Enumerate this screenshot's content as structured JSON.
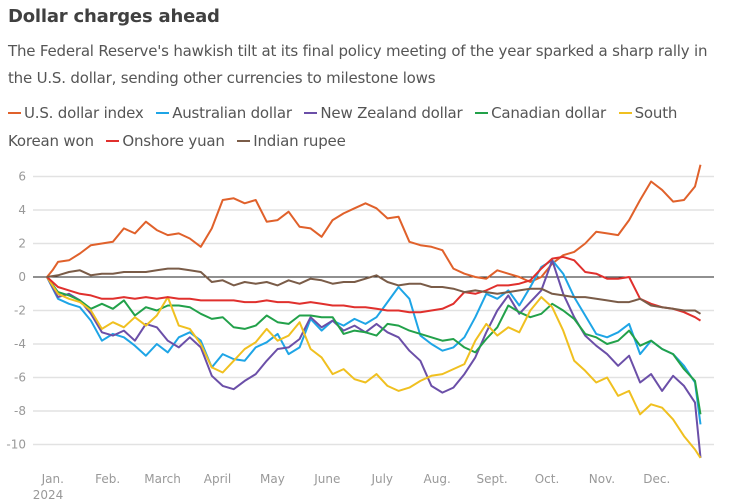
{
  "header": {
    "title": "Dollar charges ahead",
    "subtitle": "The Federal Reserve's hawkish tilt at its final policy meeting of the year sparked a sharp rally in the U.S. dollar, sending other currencies to milestone lows"
  },
  "chart_data": {
    "type": "line",
    "title": "Dollar charges ahead",
    "subtitle": "The Federal Reserve's hawkish tilt at its final policy meeting of the year sparked a sharp rally in the U.S. dollar, sending other currencies to milestone lows",
    "xlabel": "",
    "ylabel": "",
    "ylim": [
      -11,
      6.5
    ],
    "xlim": [
      0,
      12
    ],
    "x_unit": "months since Jan. 1, 2024",
    "yticks": [
      6,
      4,
      2,
      0,
      -2,
      -4,
      -6,
      -8,
      -10
    ],
    "ytick_labels": [
      "6",
      "4",
      "2",
      "0",
      "-2",
      "-4",
      "-6",
      "-8",
      "-10"
    ],
    "xtick_labels": [
      "Jan.",
      "Feb.",
      "March",
      "April",
      "May",
      "June",
      "July",
      "Aug.",
      "Sept.",
      "Oct.",
      "Nov.",
      "Dec."
    ],
    "xtick_sublabel": "2024",
    "grid": true,
    "zero_line": true,
    "legend_position": "top",
    "series": [
      {
        "name": "U.S. dollar index",
        "color": "#e0612b",
        "x": [
          0,
          0.1,
          0.2,
          0.4,
          0.6,
          0.8,
          1.0,
          1.2,
          1.4,
          1.6,
          1.8,
          2.0,
          2.2,
          2.4,
          2.6,
          2.8,
          3.0,
          3.2,
          3.4,
          3.6,
          3.8,
          4.0,
          4.2,
          4.4,
          4.6,
          4.8,
          5.0,
          5.2,
          5.4,
          5.6,
          5.8,
          6.0,
          6.2,
          6.4,
          6.6,
          6.8,
          7.0,
          7.2,
          7.4,
          7.6,
          7.8,
          8.0,
          8.2,
          8.4,
          8.6,
          8.8,
          9.0,
          9.2,
          9.4,
          9.6,
          9.8,
          10.0,
          10.2,
          10.4,
          10.6,
          10.8,
          11.0,
          11.2,
          11.4,
          11.6,
          11.8,
          11.9
        ],
        "y": [
          0,
          0.4,
          0.9,
          1.0,
          1.4,
          1.9,
          2.0,
          2.1,
          2.9,
          2.6,
          3.3,
          2.8,
          2.5,
          2.6,
          2.3,
          1.8,
          2.9,
          4.6,
          4.7,
          4.4,
          4.6,
          3.3,
          3.4,
          3.9,
          3.0,
          2.9,
          2.4,
          3.4,
          3.8,
          4.1,
          4.4,
          4.1,
          3.5,
          3.6,
          2.1,
          1.9,
          1.8,
          1.6,
          0.5,
          0.2,
          0.0,
          -0.1,
          0.4,
          0.2,
          0.0,
          -0.3,
          0.0,
          0.8,
          1.3,
          1.5,
          2.0,
          2.7,
          2.6,
          2.5,
          3.4,
          4.6,
          5.7,
          5.2,
          4.5,
          4.6,
          5.4,
          6.7
        ]
      },
      {
        "name": "Australian dollar",
        "color": "#1ea5e6",
        "x": [
          0,
          0.2,
          0.4,
          0.6,
          0.8,
          1.0,
          1.2,
          1.4,
          1.6,
          1.8,
          2.0,
          2.2,
          2.4,
          2.6,
          2.8,
          3.0,
          3.2,
          3.4,
          3.6,
          3.8,
          4.0,
          4.2,
          4.4,
          4.6,
          4.8,
          5.0,
          5.2,
          5.4,
          5.6,
          5.8,
          6.0,
          6.2,
          6.4,
          6.6,
          6.8,
          7.0,
          7.2,
          7.4,
          7.6,
          7.8,
          8.0,
          8.2,
          8.4,
          8.6,
          8.8,
          9.0,
          9.2,
          9.4,
          9.6,
          9.8,
          10.0,
          10.2,
          10.4,
          10.6,
          10.8,
          11.0,
          11.2,
          11.4,
          11.6,
          11.8,
          11.9
        ],
        "y": [
          0,
          -1.3,
          -1.6,
          -1.8,
          -2.6,
          -3.8,
          -3.4,
          -3.6,
          -4.1,
          -4.7,
          -4.0,
          -4.5,
          -3.6,
          -3.3,
          -3.8,
          -5.4,
          -4.6,
          -4.9,
          -5.0,
          -4.2,
          -3.9,
          -3.4,
          -4.6,
          -4.2,
          -2.5,
          -3.2,
          -2.6,
          -2.9,
          -2.5,
          -2.8,
          -2.4,
          -1.5,
          -0.6,
          -1.3,
          -3.5,
          -4.0,
          -4.4,
          -4.2,
          -3.6,
          -2.4,
          -1.0,
          -1.3,
          -0.8,
          -1.7,
          -0.6,
          0.6,
          1.0,
          0.2,
          -1.2,
          -2.3,
          -3.4,
          -3.6,
          -3.3,
          -2.8,
          -4.6,
          -3.8,
          -4.3,
          -4.6,
          -5.3,
          -6.3,
          -8.8
        ]
      },
      {
        "name": "New Zealand dollar",
        "color": "#6b4fa8",
        "x": [
          0,
          0.2,
          0.4,
          0.6,
          0.8,
          1.0,
          1.2,
          1.4,
          1.6,
          1.8,
          2.0,
          2.2,
          2.4,
          2.6,
          2.8,
          3.0,
          3.2,
          3.4,
          3.6,
          3.8,
          4.0,
          4.2,
          4.4,
          4.6,
          4.8,
          5.0,
          5.2,
          5.4,
          5.6,
          5.8,
          6.0,
          6.2,
          6.4,
          6.6,
          6.8,
          7.0,
          7.2,
          7.4,
          7.6,
          7.8,
          8.0,
          8.2,
          8.4,
          8.6,
          8.8,
          9.0,
          9.2,
          9.4,
          9.6,
          9.8,
          10.0,
          10.2,
          10.4,
          10.6,
          10.8,
          11.0,
          11.2,
          11.4,
          11.6,
          11.8,
          11.9
        ],
        "y": [
          0,
          -1.2,
          -1.0,
          -1.4,
          -2.2,
          -3.3,
          -3.5,
          -3.2,
          -3.8,
          -2.8,
          -3.0,
          -3.8,
          -4.2,
          -3.6,
          -4.2,
          -5.9,
          -6.5,
          -6.7,
          -6.2,
          -5.8,
          -5.0,
          -4.3,
          -4.2,
          -3.7,
          -2.4,
          -3.0,
          -2.6,
          -3.2,
          -2.9,
          -3.3,
          -2.8,
          -3.3,
          -3.6,
          -4.4,
          -5.0,
          -6.5,
          -6.9,
          -6.6,
          -5.8,
          -4.8,
          -3.3,
          -2.0,
          -1.1,
          -2.2,
          -1.5,
          -0.8,
          1.0,
          -1.0,
          -2.4,
          -3.5,
          -4.1,
          -4.6,
          -5.3,
          -4.7,
          -6.3,
          -5.8,
          -6.8,
          -5.9,
          -6.5,
          -7.5,
          -10.8
        ]
      },
      {
        "name": "Canadian dollar",
        "color": "#22a14a",
        "x": [
          0,
          0.2,
          0.4,
          0.6,
          0.8,
          1.0,
          1.2,
          1.4,
          1.6,
          1.8,
          2.0,
          2.2,
          2.4,
          2.6,
          2.8,
          3.0,
          3.2,
          3.4,
          3.6,
          3.8,
          4.0,
          4.2,
          4.4,
          4.6,
          4.8,
          5.0,
          5.2,
          5.4,
          5.6,
          5.8,
          6.0,
          6.2,
          6.4,
          6.6,
          6.8,
          7.0,
          7.2,
          7.4,
          7.6,
          7.8,
          8.0,
          8.2,
          8.4,
          8.6,
          8.8,
          9.0,
          9.2,
          9.4,
          9.6,
          9.8,
          10.0,
          10.2,
          10.4,
          10.6,
          10.8,
          11.0,
          11.2,
          11.4,
          11.6,
          11.8,
          11.9
        ],
        "y": [
          0,
          -0.9,
          -1.1,
          -1.4,
          -1.9,
          -1.6,
          -1.9,
          -1.4,
          -2.3,
          -1.8,
          -2.0,
          -1.7,
          -1.7,
          -1.8,
          -2.2,
          -2.5,
          -2.4,
          -3.0,
          -3.1,
          -2.9,
          -2.3,
          -2.7,
          -2.8,
          -2.3,
          -2.3,
          -2.4,
          -2.4,
          -3.4,
          -3.2,
          -3.3,
          -3.5,
          -2.8,
          -2.9,
          -3.2,
          -3.4,
          -3.6,
          -3.8,
          -3.7,
          -4.2,
          -4.5,
          -3.7,
          -3.0,
          -1.7,
          -2.1,
          -2.4,
          -2.2,
          -1.6,
          -2.0,
          -2.5,
          -3.4,
          -3.6,
          -4.0,
          -3.8,
          -3.2,
          -4.1,
          -3.8,
          -4.3,
          -4.6,
          -5.5,
          -6.2,
          -8.2
        ]
      },
      {
        "name": "South Korean won",
        "color": "#f0c020",
        "x": [
          0,
          0.2,
          0.4,
          0.6,
          0.8,
          1.0,
          1.2,
          1.4,
          1.6,
          1.8,
          2.0,
          2.2,
          2.4,
          2.6,
          2.8,
          3.0,
          3.2,
          3.4,
          3.6,
          3.8,
          4.0,
          4.2,
          4.4,
          4.6,
          4.8,
          5.0,
          5.2,
          5.4,
          5.6,
          5.8,
          6.0,
          6.2,
          6.4,
          6.6,
          6.8,
          7.0,
          7.2,
          7.4,
          7.6,
          7.8,
          8.0,
          8.2,
          8.4,
          8.6,
          8.8,
          9.0,
          9.2,
          9.4,
          9.6,
          9.8,
          10.0,
          10.2,
          10.4,
          10.6,
          10.8,
          11.0,
          11.2,
          11.4,
          11.6,
          11.8,
          11.9
        ],
        "y": [
          0,
          -1.0,
          -1.3,
          -1.5,
          -2.0,
          -3.1,
          -2.7,
          -3.0,
          -2.4,
          -2.9,
          -2.3,
          -1.2,
          -2.9,
          -3.1,
          -4.0,
          -5.4,
          -5.7,
          -5.0,
          -4.3,
          -3.9,
          -3.1,
          -3.8,
          -3.5,
          -2.7,
          -4.3,
          -4.8,
          -5.8,
          -5.5,
          -6.1,
          -6.3,
          -5.8,
          -6.5,
          -6.8,
          -6.6,
          -6.2,
          -5.9,
          -5.8,
          -5.5,
          -5.2,
          -3.8,
          -2.8,
          -3.5,
          -3.0,
          -3.3,
          -2.0,
          -1.2,
          -1.8,
          -3.2,
          -5.0,
          -5.6,
          -6.3,
          -6.0,
          -7.1,
          -6.8,
          -8.2,
          -7.6,
          -7.8,
          -8.5,
          -9.5,
          -10.3,
          -10.8
        ]
      },
      {
        "name": "Onshore yuan",
        "color": "#e0302d",
        "x": [
          0,
          0.2,
          0.4,
          0.6,
          0.8,
          1.0,
          1.2,
          1.4,
          1.6,
          1.8,
          2.0,
          2.2,
          2.4,
          2.6,
          2.8,
          3.0,
          3.2,
          3.4,
          3.6,
          3.8,
          4.0,
          4.2,
          4.4,
          4.6,
          4.8,
          5.0,
          5.2,
          5.4,
          5.6,
          5.8,
          6.0,
          6.2,
          6.4,
          6.6,
          6.8,
          7.0,
          7.2,
          7.4,
          7.6,
          7.8,
          8.0,
          8.2,
          8.4,
          8.6,
          8.8,
          9.0,
          9.2,
          9.4,
          9.6,
          9.8,
          10.0,
          10.2,
          10.4,
          10.6,
          10.8,
          11.0,
          11.2,
          11.4,
          11.6,
          11.8,
          11.9
        ],
        "y": [
          0,
          -0.6,
          -0.8,
          -1.0,
          -1.1,
          -1.3,
          -1.3,
          -1.2,
          -1.3,
          -1.2,
          -1.3,
          -1.2,
          -1.3,
          -1.3,
          -1.4,
          -1.4,
          -1.4,
          -1.4,
          -1.5,
          -1.5,
          -1.4,
          -1.5,
          -1.5,
          -1.6,
          -1.5,
          -1.6,
          -1.7,
          -1.7,
          -1.8,
          -1.8,
          -1.9,
          -2.0,
          -2.0,
          -2.1,
          -2.1,
          -2.0,
          -1.9,
          -1.6,
          -0.9,
          -1.0,
          -0.8,
          -0.5,
          -0.5,
          -0.4,
          -0.2,
          0.5,
          1.1,
          1.2,
          1.0,
          0.3,
          0.2,
          -0.1,
          -0.1,
          0.0,
          -1.3,
          -1.6,
          -1.8,
          -1.9,
          -2.1,
          -2.4,
          -2.6
        ]
      },
      {
        "name": "Indian rupee",
        "color": "#7a5c48",
        "x": [
          0,
          0.2,
          0.4,
          0.6,
          0.8,
          1.0,
          1.2,
          1.4,
          1.6,
          1.8,
          2.0,
          2.2,
          2.4,
          2.6,
          2.8,
          3.0,
          3.2,
          3.4,
          3.6,
          3.8,
          4.0,
          4.2,
          4.4,
          4.6,
          4.8,
          5.0,
          5.2,
          5.4,
          5.6,
          5.8,
          6.0,
          6.2,
          6.4,
          6.6,
          6.8,
          7.0,
          7.2,
          7.4,
          7.6,
          7.8,
          8.0,
          8.2,
          8.4,
          8.6,
          8.8,
          9.0,
          9.2,
          9.4,
          9.6,
          9.8,
          10.0,
          10.2,
          10.4,
          10.6,
          10.8,
          11.0,
          11.2,
          11.4,
          11.6,
          11.8,
          11.9
        ],
        "y": [
          0,
          0.1,
          0.3,
          0.4,
          0.1,
          0.2,
          0.2,
          0.3,
          0.3,
          0.3,
          0.4,
          0.5,
          0.5,
          0.4,
          0.3,
          -0.3,
          -0.2,
          -0.5,
          -0.3,
          -0.4,
          -0.3,
          -0.5,
          -0.2,
          -0.4,
          -0.1,
          -0.2,
          -0.4,
          -0.3,
          -0.3,
          -0.1,
          0.1,
          -0.3,
          -0.5,
          -0.4,
          -0.4,
          -0.6,
          -0.6,
          -0.7,
          -0.9,
          -0.8,
          -0.9,
          -1.0,
          -0.9,
          -0.8,
          -0.7,
          -0.7,
          -1.0,
          -1.1,
          -1.2,
          -1.2,
          -1.3,
          -1.4,
          -1.5,
          -1.5,
          -1.3,
          -1.7,
          -1.8,
          -1.9,
          -2.0,
          -2.0,
          -2.2
        ]
      }
    ]
  }
}
